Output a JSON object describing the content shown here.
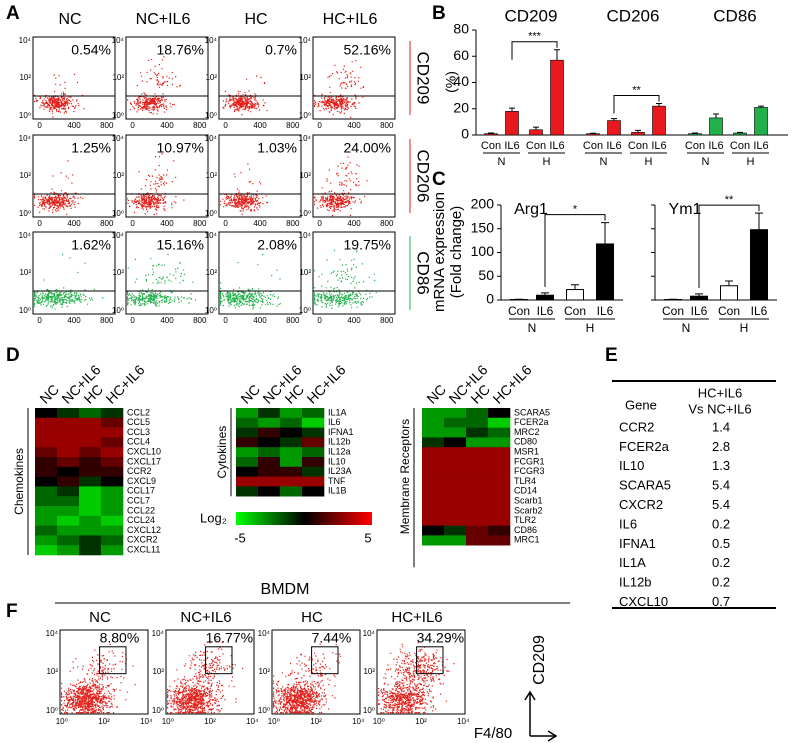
{
  "panel_a": {
    "label": "A",
    "columns": [
      "NC",
      "NC+IL6",
      "HC",
      "HC+IL6"
    ],
    "xticks": [
      "0",
      "400",
      "800"
    ],
    "yticks": [
      "10⁴",
      "10²",
      "10⁰"
    ],
    "rows": [
      {
        "marker": "CD209",
        "color": "#e3201b",
        "percents": [
          "0.54%",
          "18.76%",
          "0.7%",
          "52.16%"
        ]
      },
      {
        "marker": "CD206",
        "color": "#e3201b",
        "percents": [
          "1.25%",
          "10.97%",
          "1.03%",
          "24.00%"
        ]
      },
      {
        "marker": "CD86",
        "color": "#21b04a",
        "percents": [
          "1.62%",
          "15.16%",
          "2.08%",
          "19.75%"
        ]
      }
    ]
  },
  "panel_b": {
    "label": "B",
    "ylabel": "(%)",
    "ylim": [
      0,
      80
    ],
    "yticks": [
      0,
      20,
      40,
      60,
      80
    ],
    "bar_labels": [
      "Con",
      "IL6"
    ],
    "conditions": [
      "N",
      "H"
    ],
    "groups": [
      {
        "name": "CD209",
        "color": "#e8191c",
        "values": [
          1,
          18,
          4,
          57
        ],
        "errors": [
          0.5,
          2.5,
          2,
          8
        ],
        "significance": "***"
      },
      {
        "name": "CD206",
        "color": "#e8191c",
        "values": [
          1,
          11,
          2,
          22
        ],
        "errors": [
          0.3,
          1.5,
          1.5,
          2
        ],
        "significance": "**"
      },
      {
        "name": "CD86",
        "color": "#21b04a",
        "values": [
          1,
          13,
          1.5,
          21
        ],
        "errors": [
          0.5,
          3,
          0.5,
          1
        ]
      }
    ]
  },
  "panel_c": {
    "label": "C",
    "ylabel": [
      "mRNA expression",
      "(Fold change)"
    ],
    "ylim": [
      0,
      200
    ],
    "yticks": [
      0,
      50,
      100,
      150,
      200
    ],
    "bar_labels": [
      "Con",
      "IL6"
    ],
    "conditions": [
      "N",
      "H"
    ],
    "colors": [
      "#ffffff",
      "#000000",
      "#ffffff",
      "#000000"
    ],
    "genes": [
      {
        "name": "Arg1",
        "values": [
          1,
          10,
          22,
          118
        ],
        "errors": [
          0.5,
          5,
          10,
          45
        ],
        "significance": "*"
      },
      {
        "name": "Ym1",
        "values": [
          1,
          8,
          30,
          148
        ],
        "errors": [
          0.5,
          5,
          10,
          35
        ],
        "significance": "**"
      }
    ]
  },
  "panel_d": {
    "label": "D",
    "columns": [
      "NC",
      "NC+IL6",
      "HC",
      "HC+IL6"
    ],
    "color_label": "Log₂",
    "color_range": [
      -5,
      5
    ],
    "colors": [
      "#00ff00",
      "#000000",
      "#ff0000"
    ],
    "heatmaps": [
      {
        "group": "Chemokines",
        "rows": [
          "CCL2",
          "CCL5",
          "CCL3",
          "CCL4",
          "CXCL10",
          "CXCL17",
          "CCR2",
          "CXCL9",
          "CCL17",
          "CCL7",
          "CCL22",
          "CCL24",
          "CXCL12",
          "CXCR2",
          "CXCL11"
        ],
        "values": [
          [
            0,
            -1,
            -2,
            -1
          ],
          [
            3,
            3,
            3,
            2
          ],
          [
            3,
            3,
            3,
            3
          ],
          [
            3,
            3,
            3,
            2
          ],
          [
            2,
            3,
            2,
            3
          ],
          [
            1,
            2,
            1,
            2
          ],
          [
            1,
            0,
            1,
            1
          ],
          [
            0,
            1,
            -1,
            0
          ],
          [
            -2,
            -1,
            -4,
            -3
          ],
          [
            -2,
            -2,
            -4,
            -3
          ],
          [
            -3,
            -3,
            -4,
            -3
          ],
          [
            -3,
            -4,
            -3,
            -4
          ],
          [
            -2,
            -3,
            -3,
            -3
          ],
          [
            -3,
            -2,
            -1,
            -2
          ],
          [
            -4,
            -3,
            -1,
            -3
          ]
        ]
      },
      {
        "group": "Cytokines",
        "rows": [
          "IL1A",
          "IL6",
          "IFNA1",
          "IL12b",
          "IL12a",
          "IL10",
          "IL23A",
          "TNF",
          "IL1B"
        ],
        "values": [
          [
            -3,
            -1,
            -3,
            -2
          ],
          [
            -2,
            -3,
            -2,
            -4
          ],
          [
            -1,
            1,
            0,
            -1
          ],
          [
            1,
            0,
            -1,
            2
          ],
          [
            -3,
            -2,
            -3,
            -2
          ],
          [
            -2,
            1,
            -3,
            1
          ],
          [
            0,
            1,
            1,
            -1
          ],
          [
            3,
            3,
            3,
            3
          ],
          [
            -1,
            0,
            -2,
            0
          ]
        ]
      },
      {
        "group": "Membrane Receptors",
        "rows": [
          "SCARA5",
          "FCER2a",
          "MRC2",
          "CD80",
          "MSR1",
          "FCGR1",
          "FCGR3",
          "TLR4",
          "CD14",
          "Scarb1",
          "Scarb2",
          "TLR2",
          "CD86",
          "MRC1"
        ],
        "values": [
          [
            -3,
            -3,
            -2,
            0
          ],
          [
            -3,
            -2,
            -2,
            -4
          ],
          [
            -3,
            -3,
            -1,
            -2
          ],
          [
            -1,
            0,
            -3,
            -3
          ],
          [
            3,
            3,
            3,
            3
          ],
          [
            3,
            3,
            3,
            3
          ],
          [
            3,
            3,
            3,
            3
          ],
          [
            3,
            3,
            3,
            3
          ],
          [
            3,
            3,
            3,
            3
          ],
          [
            3,
            3,
            3,
            3
          ],
          [
            3,
            3,
            3,
            3
          ],
          [
            3,
            3,
            3,
            3
          ],
          [
            0,
            -1,
            2,
            1
          ],
          [
            -3,
            -3,
            2,
            2
          ]
        ]
      }
    ]
  },
  "panel_e": {
    "label": "E",
    "header": {
      "gene": "Gene",
      "comparison": [
        "HC+IL6",
        "Vs NC+IL6"
      ]
    },
    "rows": [
      [
        "CCR2",
        "1.4"
      ],
      [
        "FCER2a",
        "2.8"
      ],
      [
        "IL10",
        "1.3"
      ],
      [
        "SCARA5",
        "5.4"
      ],
      [
        "CXCR2",
        "5.4"
      ],
      [
        "IL6",
        "0.2"
      ],
      [
        "IFNA1",
        "0.5"
      ],
      [
        "IL1A",
        "0.2"
      ],
      [
        "IL12b",
        "0.2"
      ],
      [
        "CXCL10",
        "0.7"
      ]
    ]
  },
  "panel_f": {
    "label": "F",
    "title": "BMDM",
    "columns": [
      "NC",
      "NC+IL6",
      "HC",
      "HC+IL6"
    ],
    "percents": [
      "8.80%",
      "16.77%",
      "7.44%",
      "34.29%"
    ],
    "ticks": [
      "10⁰",
      "10²",
      "10⁴"
    ],
    "color": "#e3201b",
    "y_label": "CD209",
    "y_color": "#e3201b",
    "x_label": "F4/80",
    "x_color": "#21b04a"
  }
}
